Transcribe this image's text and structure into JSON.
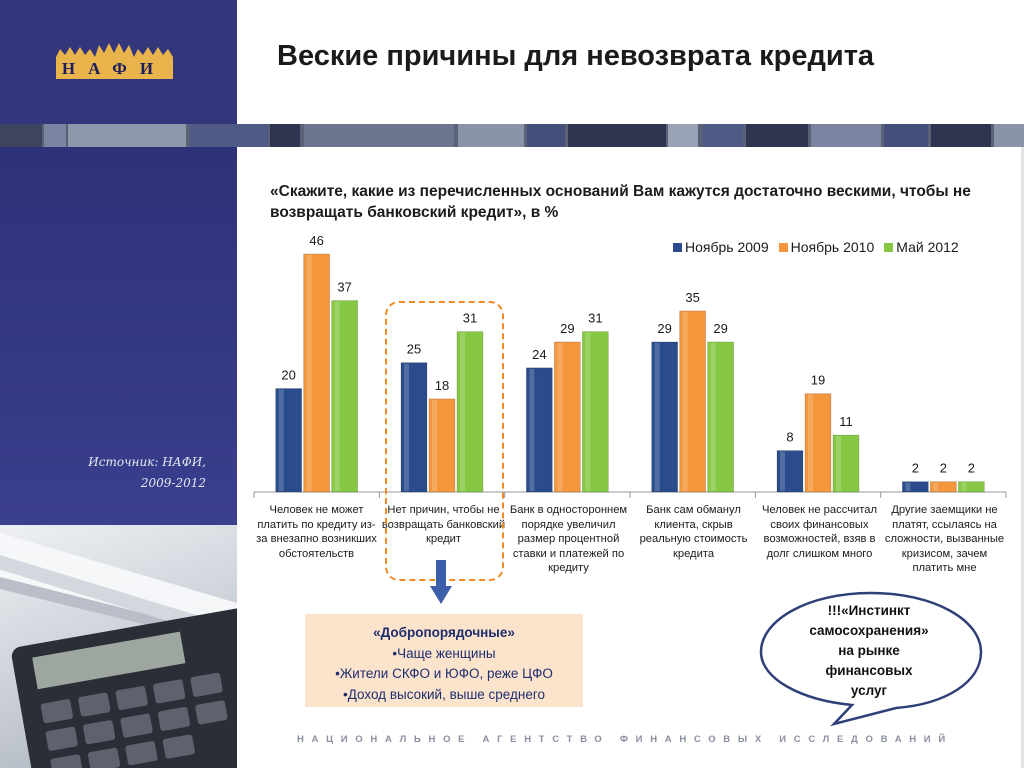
{
  "header": {
    "logo_text": "НАФИ",
    "title": "Веские причины для невозврата кредита"
  },
  "sidebar": {
    "source_line1": "Источник:  НАФИ,",
    "source_line2": "2009-2012"
  },
  "footer": {
    "text": "НАЦИОНАЛЬНОЕ АГЕНТСТВО ФИНАНСОВЫХ ИССЛЕДОВАНИЙ"
  },
  "colors": {
    "nov2009": "#2a4c8c",
    "nov2010": "#f3963c",
    "may2012": "#86c843",
    "brand_navy": "#33367a",
    "highlight": "#f08a24",
    "logo_gold": "#e9b44c"
  },
  "chart_data": {
    "type": "bar",
    "title": "«Скажите, какие из перечисленных оснований Вам кажутся достаточно вескими, чтобы не возвращать банковский кредит», в %",
    "legend_position": "top-right",
    "grid": false,
    "ylim": [
      0,
      50
    ],
    "categories": [
      "Человек не может платить по кредиту из-за внезапно возникших обстоятельств",
      "Нет причин, чтобы не возвращать банковский кредит",
      "Банк в одностороннем порядке увеличил размер процентной ставки и платежей по кредиту",
      "Банк сам обманул клиента, скрыв реальную стоимость кредита",
      "Человек не рассчитал своих финансовых возможностей, взяв в долг слишком много",
      "Другие заемщики не платят, ссылаясь на сложности, вызванные кризисом, зачем платить мне"
    ],
    "series": [
      {
        "name": "Ноябрь 2009",
        "values": [
          20,
          25,
          24,
          29,
          8,
          2
        ]
      },
      {
        "name": "Ноябрь 2010",
        "values": [
          46,
          18,
          29,
          35,
          19,
          2
        ]
      },
      {
        "name": "Май 2012",
        "values": [
          37,
          31,
          31,
          29,
          11,
          2
        ]
      }
    ]
  },
  "callout": {
    "title": "«Добропорядочные»",
    "items": [
      "•Чаще женщины",
      "•Жители СКФО и ЮФО, реже ЦФО",
      "•Доход высокий, выше среднего"
    ]
  },
  "bubble": {
    "lines": [
      "!!!«Инстинкт",
      "самосохранения»",
      "на рынке",
      "финансовых",
      "услуг"
    ]
  }
}
